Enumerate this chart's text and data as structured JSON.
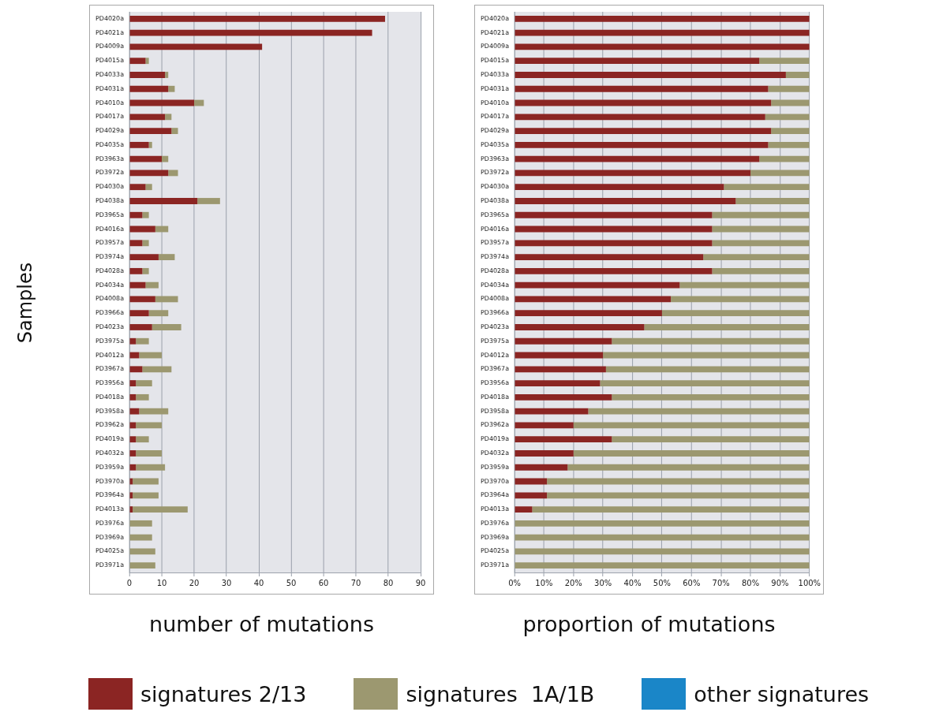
{
  "chart_data": [
    {
      "type": "bar",
      "orientation": "horizontal",
      "stacked": true,
      "xlabel": "number of mutations",
      "ylabel": "Samples",
      "legend": "bottom",
      "grid": "x",
      "categories": [
        "PD4020a",
        "PD4021a",
        "PD4009a",
        "PD4015a",
        "PD4033a",
        "PD4031a",
        "PD4010a",
        "PD4017a",
        "PD4029a",
        "PD4035a",
        "PD3963a",
        "PD3972a",
        "PD4030a",
        "PD4038a",
        "PD3965a",
        "PD4016a",
        "PD3957a",
        "PD3974a",
        "PD4028a",
        "PD4034a",
        "PD4008a",
        "PD3966a",
        "PD4023a",
        "PD3975a",
        "PD4012a",
        "PD3967a",
        "PD3956a",
        "PD4018a",
        "PD3958a",
        "PD3962a",
        "PD4019a",
        "PD4032a",
        "PD3959a",
        "PD3970a",
        "PD3964a",
        "PD4013a",
        "PD3976a",
        "PD3969a",
        "PD4025a",
        "PD3971a"
      ],
      "xlim": [
        0,
        90
      ],
      "xticks": [
        0,
        10,
        20,
        30,
        40,
        50,
        60,
        70,
        80,
        90
      ],
      "series": [
        {
          "name": "signatures 2/13",
          "color": "#8b2523",
          "values": [
            79,
            75,
            41,
            5,
            11,
            12,
            20,
            11,
            13,
            6,
            10,
            12,
            5,
            21,
            4,
            8,
            4,
            9,
            4,
            5,
            8,
            6,
            7,
            2,
            3,
            4,
            2,
            2,
            3,
            2,
            2,
            2,
            2,
            1,
            1,
            1,
            0,
            0,
            0,
            0
          ]
        },
        {
          "name": "signatures  1A/1B",
          "color": "#9c9870",
          "values": [
            0,
            0,
            0,
            1,
            1,
            2,
            3,
            2,
            2,
            1,
            2,
            3,
            2,
            7,
            2,
            4,
            2,
            5,
            2,
            4,
            7,
            6,
            9,
            4,
            7,
            9,
            5,
            4,
            9,
            8,
            4,
            8,
            9,
            8,
            8,
            17,
            7,
            7,
            8,
            8
          ]
        },
        {
          "name": "other signatures",
          "color": "#1a86c8",
          "values": [
            0,
            0,
            0,
            0,
            0,
            0,
            0,
            0,
            0,
            0,
            0,
            0,
            0,
            0,
            0,
            0,
            0,
            0,
            0,
            0,
            0,
            0,
            0,
            0,
            0,
            0,
            0,
            0,
            0,
            0,
            0,
            0,
            0,
            0,
            0,
            0,
            0,
            0,
            0,
            0
          ]
        }
      ]
    },
    {
      "type": "bar",
      "orientation": "horizontal",
      "stacked": true,
      "xlabel": "proportion of mutations",
      "grid": "x",
      "categories": [
        "PD4020a",
        "PD4021a",
        "PD4009a",
        "PD4015a",
        "PD4033a",
        "PD4031a",
        "PD4010a",
        "PD4017a",
        "PD4029a",
        "PD4035a",
        "PD3963a",
        "PD3972a",
        "PD4030a",
        "PD4038a",
        "PD3965a",
        "PD4016a",
        "PD3957a",
        "PD3974a",
        "PD4028a",
        "PD4034a",
        "PD4008a",
        "PD3966a",
        "PD4023a",
        "PD3975a",
        "PD4012a",
        "PD3967a",
        "PD3956a",
        "PD4018a",
        "PD3958a",
        "PD3962a",
        "PD4019a",
        "PD4032a",
        "PD3959a",
        "PD3970a",
        "PD3964a",
        "PD4013a",
        "PD3976a",
        "PD3969a",
        "PD4025a",
        "PD3971a"
      ],
      "xlim": [
        0,
        100
      ],
      "xticks": [
        {
          "value": 0,
          "label": "0%"
        },
        {
          "value": 10,
          "label": "10%"
        },
        {
          "value": 20,
          "label": "20%"
        },
        {
          "value": 30,
          "label": "30%"
        },
        {
          "value": 40,
          "label": "40%"
        },
        {
          "value": 50,
          "label": "50%"
        },
        {
          "value": 60,
          "label": "60%"
        },
        {
          "value": 70,
          "label": "70%"
        },
        {
          "value": 80,
          "label": "80%"
        },
        {
          "value": 90,
          "label": "90%"
        },
        {
          "value": 100,
          "label": "100%"
        }
      ],
      "series": [
        {
          "color": "#8b2523",
          "values": [
            100,
            100,
            100,
            83,
            92,
            86,
            87,
            85,
            87,
            86,
            83,
            80,
            71,
            75,
            67,
            67,
            67,
            64,
            67,
            56,
            53,
            50,
            44,
            33,
            30,
            31,
            29,
            33,
            25,
            20,
            33,
            20,
            18,
            11,
            11,
            6,
            0,
            0,
            0,
            0
          ]
        },
        {
          "color": "#9c9870",
          "values": [
            0,
            0,
            0,
            17,
            8,
            14,
            13,
            15,
            13,
            14,
            17,
            20,
            29,
            25,
            33,
            33,
            33,
            36,
            33,
            44,
            47,
            50,
            56,
            67,
            70,
            69,
            71,
            67,
            75,
            80,
            67,
            80,
            82,
            89,
            89,
            94,
            100,
            100,
            100,
            100
          ]
        },
        {
          "color": "#1a86c8",
          "values": [
            0,
            0,
            0,
            0,
            0,
            0,
            0,
            0,
            0,
            0,
            0,
            0,
            0,
            0,
            0,
            0,
            0,
            0,
            0,
            0,
            0,
            0,
            0,
            0,
            0,
            0,
            0,
            0,
            0,
            0,
            0,
            0,
            0,
            0,
            0,
            0,
            0,
            0,
            0,
            0
          ]
        }
      ]
    }
  ]
}
